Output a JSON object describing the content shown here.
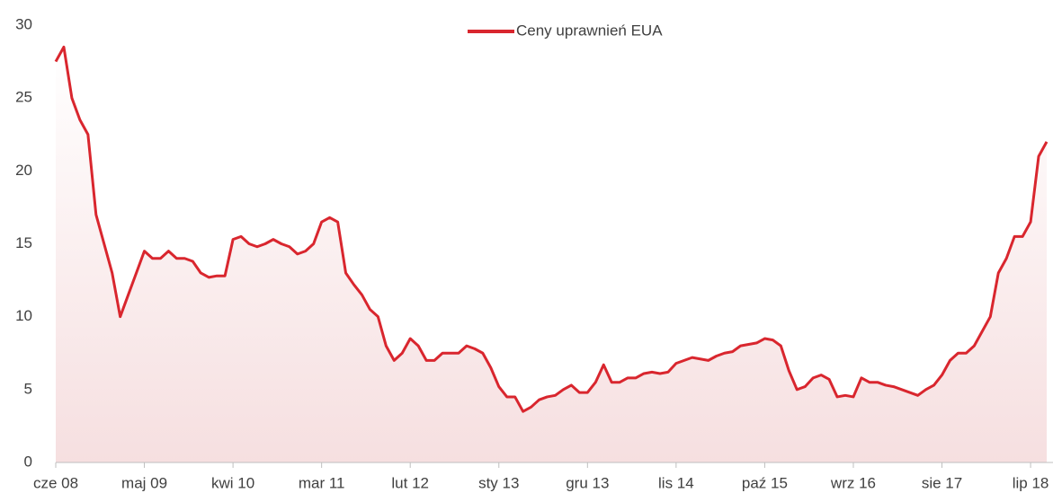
{
  "chart_data": {
    "type": "line",
    "categories": [
      "cze 08",
      null,
      null,
      null,
      null,
      null,
      null,
      null,
      null,
      null,
      null,
      "maj 09",
      null,
      null,
      null,
      null,
      null,
      null,
      null,
      null,
      null,
      null,
      "kwi 10",
      null,
      null,
      null,
      null,
      null,
      null,
      null,
      null,
      null,
      null,
      "mar 11",
      null,
      null,
      null,
      null,
      null,
      null,
      null,
      null,
      null,
      null,
      "lut 12",
      null,
      null,
      null,
      null,
      null,
      null,
      null,
      null,
      null,
      null,
      "sty 13",
      null,
      null,
      null,
      null,
      null,
      null,
      null,
      null,
      null,
      null,
      "gru 13",
      null,
      null,
      null,
      null,
      null,
      null,
      null,
      null,
      null,
      null,
      "lis 14",
      null,
      null,
      null,
      null,
      null,
      null,
      null,
      null,
      null,
      null,
      "paź 15",
      null,
      null,
      null,
      null,
      null,
      null,
      null,
      null,
      null,
      null,
      "wrz 16",
      null,
      null,
      null,
      null,
      null,
      null,
      null,
      null,
      null,
      null,
      "sie 17",
      null,
      null,
      null,
      null,
      null,
      null,
      null,
      null,
      null,
      null,
      "lip 18",
      null,
      null
    ],
    "series": [
      {
        "name": "Ceny uprawnień EUA",
        "color": "#d9262e",
        "values": [
          27.5,
          28.5,
          25,
          23.5,
          22.5,
          17,
          15,
          13,
          10,
          11.5,
          13,
          14.5,
          14,
          14,
          14.5,
          14,
          14,
          13.8,
          13,
          12.7,
          12.8,
          12.8,
          15.3,
          15.5,
          15,
          14.8,
          15,
          15.3,
          15,
          14.8,
          14.3,
          14.5,
          15,
          16.5,
          16.8,
          16.5,
          13,
          12.2,
          11.5,
          10.5,
          10,
          8,
          7,
          7.5,
          8.5,
          8,
          7,
          7,
          7.5,
          7.5,
          7.5,
          8,
          7.8,
          7.5,
          6.5,
          5.2,
          4.5,
          4.5,
          3.5,
          3.8,
          4.3,
          4.5,
          4.6,
          5,
          5.3,
          4.8,
          4.8,
          5.5,
          6.7,
          5.5,
          5.5,
          5.8,
          5.8,
          6.1,
          6.2,
          6.1,
          6.2,
          6.8,
          7,
          7.2,
          7.1,
          7,
          7.3,
          7.5,
          7.6,
          8,
          8.1,
          8.2,
          8.5,
          8.4,
          8,
          6.3,
          5,
          5.2,
          5.8,
          6,
          5.7,
          4.5,
          4.6,
          4.5,
          5.8,
          5.5,
          5.5,
          5.3,
          5.2,
          5,
          4.8,
          4.6,
          5,
          5.3,
          6,
          7,
          7.5,
          7.5,
          8,
          9,
          10,
          13,
          14,
          15.5,
          15.5,
          16.5,
          21,
          22
        ]
      }
    ],
    "ylim": [
      0,
      30
    ],
    "yticks": [
      0,
      5,
      10,
      15,
      20,
      25,
      30
    ],
    "legend": "top"
  }
}
